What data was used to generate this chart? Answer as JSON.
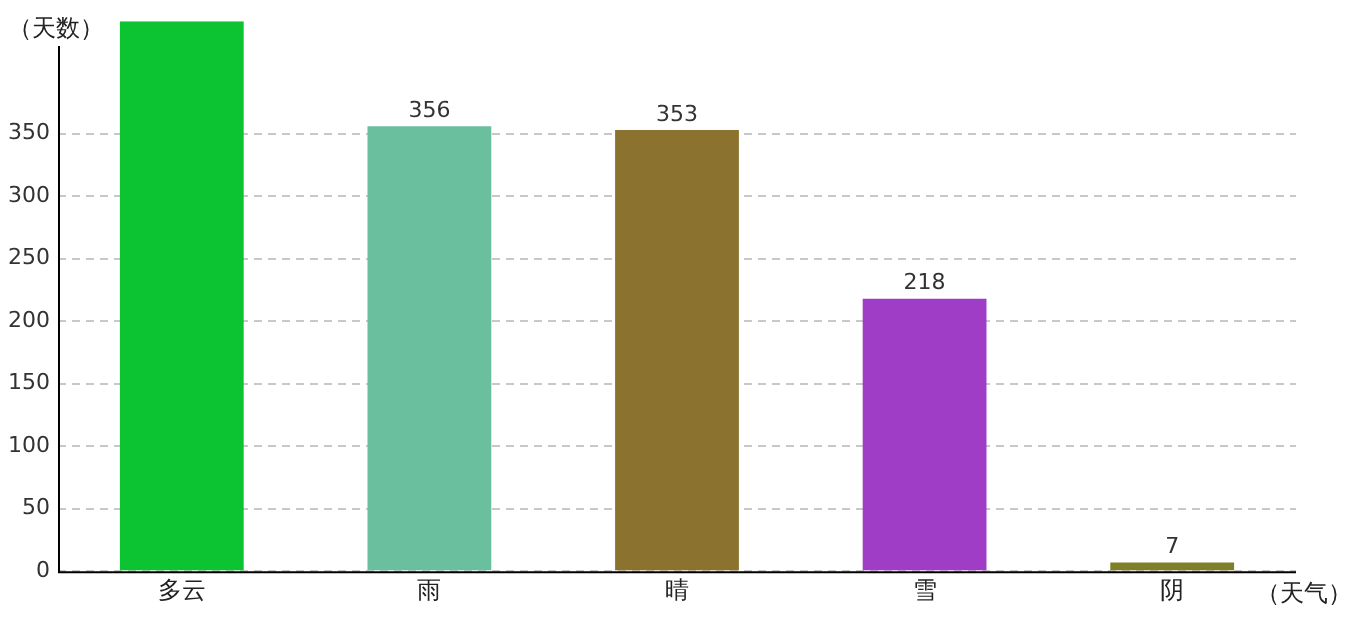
{
  "chart_data": {
    "type": "bar",
    "xlabel": "（天气）",
    "ylabel": "（天数）",
    "categories": [
      "多云",
      "雨",
      "晴",
      "雪",
      "阴"
    ],
    "values": [
      440,
      356,
      353,
      218,
      7
    ],
    "value_labels": [
      null,
      "356",
      "353",
      "218",
      "7"
    ],
    "colors": [
      "#0cc432",
      "#6abf9e",
      "#8c722f",
      "#a03dc6",
      "#7f7f2a"
    ],
    "ylim": [
      0,
      440
    ],
    "yticks": [
      0,
      50,
      100,
      150,
      200,
      250,
      300,
      350
    ],
    "grid": "y",
    "legend": false
  }
}
